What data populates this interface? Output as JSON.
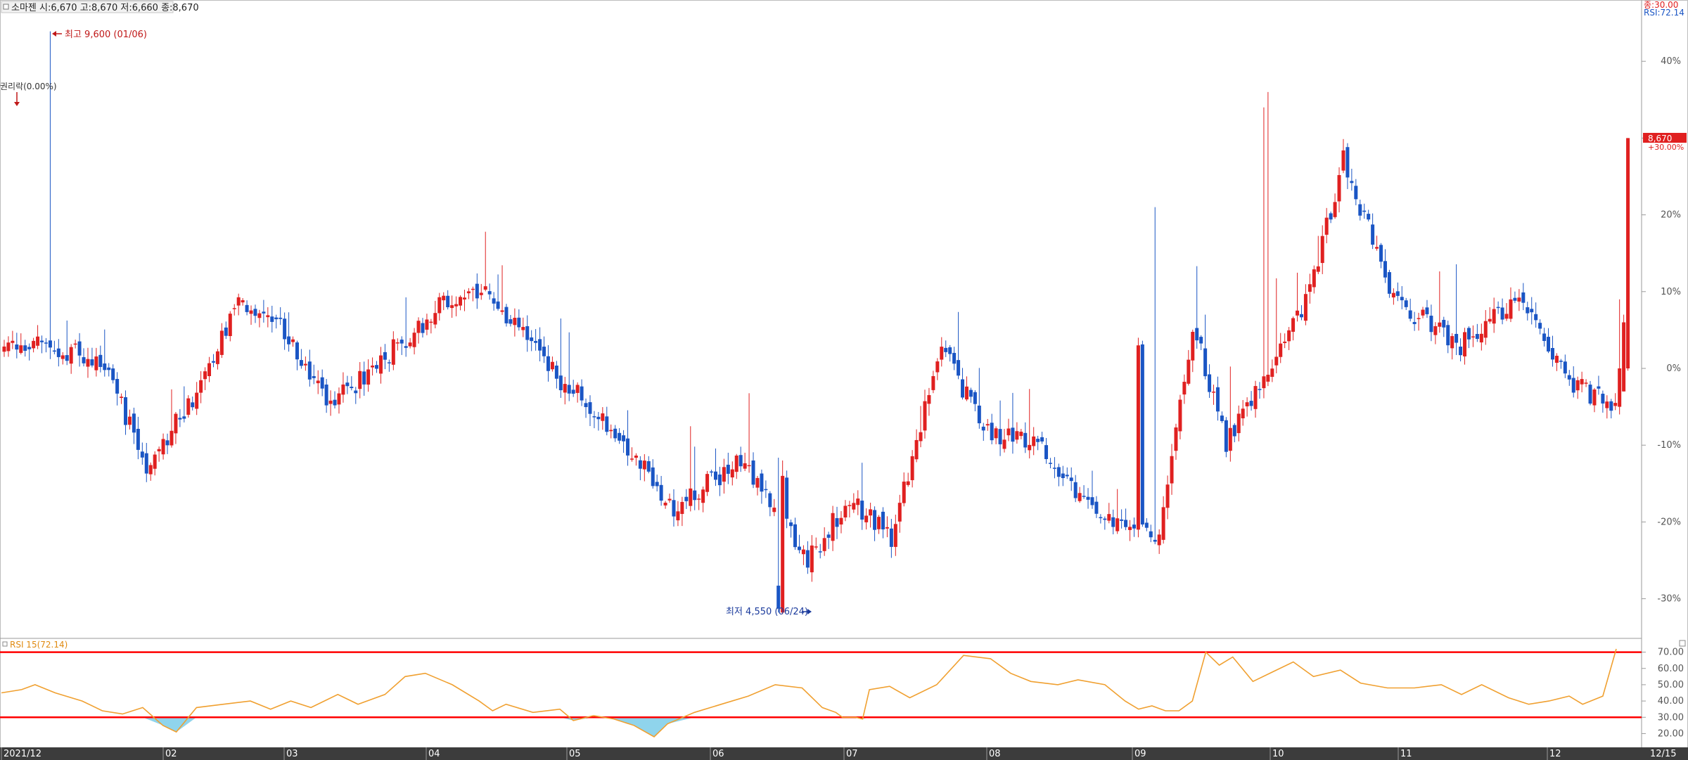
{
  "header": {
    "title": "소마젠",
    "quote": "시:6,670 고:8,670 저:6,660 종:8,670"
  },
  "right_legend": {
    "line1": "종:30.00",
    "line2": "RSI:72.14",
    "colors": {
      "line1": "#e02020",
      "line2": "#1a55c4"
    }
  },
  "price_axis": {
    "ticks": [
      "40%",
      "30%",
      "20%",
      "10%",
      "0%",
      "-10%",
      "-20%",
      "-30%"
    ],
    "last_label": "8,670",
    "last_change": "+30.00%"
  },
  "annotations": {
    "high": "최고 9,600 (01/06)",
    "low": "최저 4,550 (06/24)",
    "ex_rights": "권리락(0.00%)"
  },
  "rsi_panel": {
    "title": "RSI 15(72.14)",
    "ticks": [
      "70.00",
      "60.00",
      "50.00",
      "40.00",
      "30.00",
      "20.00"
    ],
    "overbought": 70,
    "oversold": 30
  },
  "x_axis": {
    "labels": [
      "2021/12",
      "02",
      "03",
      "04",
      "05",
      "06",
      "07",
      "08",
      "09",
      "10",
      "11",
      "12"
    ],
    "end_label": "12/15"
  },
  "colors": {
    "up": "#e02020",
    "down": "#1a55c4",
    "rsi": "#f0a030",
    "band": "#ff0000",
    "oversold_fill": "#8fd4ec",
    "axis_bar": "#3c3c3c"
  },
  "chart_data": {
    "type": "candlestick",
    "base_price": 6670,
    "unit": "% change from base price",
    "price_range_pct": [
      -30,
      40
    ],
    "high": {
      "pct": 43.9,
      "price": 9600,
      "date": "01/06"
    },
    "low": {
      "pct": -31.8,
      "price": 4550,
      "date": "06/24"
    },
    "last": {
      "price": 8670,
      "pct": 30.0
    },
    "segments": [
      {
        "from": 0,
        "to": 8,
        "start": 3,
        "end": 4
      },
      {
        "from": 8,
        "to": 16,
        "start": 4,
        "end": 2
      },
      {
        "from": 16,
        "to": 24,
        "start": 2,
        "end": 1
      },
      {
        "from": 24,
        "to": 34,
        "start": 1,
        "end": -13
      },
      {
        "from": 34,
        "to": 46,
        "start": -13,
        "end": -3
      },
      {
        "from": 46,
        "to": 56,
        "start": -3,
        "end": 9
      },
      {
        "from": 56,
        "to": 66,
        "start": 9,
        "end": 6
      },
      {
        "from": 66,
        "to": 78,
        "start": 6,
        "end": -5
      },
      {
        "from": 78,
        "to": 92,
        "start": -5,
        "end": 2
      },
      {
        "from": 92,
        "to": 104,
        "start": 2,
        "end": 8
      },
      {
        "from": 104,
        "to": 116,
        "start": 8,
        "end": 10
      },
      {
        "from": 116,
        "to": 130,
        "start": 10,
        "end": 0
      },
      {
        "from": 130,
        "to": 146,
        "start": 0,
        "end": -8
      },
      {
        "from": 146,
        "to": 160,
        "start": -8,
        "end": -18
      },
      {
        "from": 160,
        "to": 176,
        "start": -18,
        "end": -12
      },
      {
        "from": 176,
        "to": 192,
        "start": -12,
        "end": -25
      },
      {
        "from": 192,
        "to": 202,
        "start": -25,
        "end": -17
      },
      {
        "from": 202,
        "to": 212,
        "start": -17,
        "end": -22
      },
      {
        "from": 212,
        "to": 224,
        "start": -22,
        "end": 3
      },
      {
        "from": 224,
        "to": 234,
        "start": 3,
        "end": -8
      },
      {
        "from": 234,
        "to": 248,
        "start": -8,
        "end": -10
      },
      {
        "from": 248,
        "to": 262,
        "start": -10,
        "end": -20
      },
      {
        "from": 262,
        "to": 276,
        "start": -20,
        "end": -22
      },
      {
        "from": 276,
        "to": 284,
        "start": -22,
        "end": 6
      },
      {
        "from": 284,
        "to": 292,
        "start": 6,
        "end": -10
      },
      {
        "from": 292,
        "to": 304,
        "start": -10,
        "end": 2
      },
      {
        "from": 304,
        "to": 312,
        "start": 2,
        "end": 10
      },
      {
        "from": 312,
        "to": 320,
        "start": 10,
        "end": 27
      },
      {
        "from": 320,
        "to": 332,
        "start": 27,
        "end": 9
      },
      {
        "from": 332,
        "to": 348,
        "start": 9,
        "end": 3
      },
      {
        "from": 348,
        "to": 362,
        "start": 3,
        "end": 9
      },
      {
        "from": 362,
        "to": 374,
        "start": 9,
        "end": -2
      },
      {
        "from": 374,
        "to": 386,
        "start": -2,
        "end": -5
      }
    ],
    "last_bars": [
      {
        "i": 386,
        "open": -5,
        "close": 0,
        "high": 9,
        "low": -6
      },
      {
        "i": 387,
        "open": -3,
        "close": 6,
        "high": 7,
        "low": -3
      },
      {
        "i": 388,
        "open": 0,
        "close": 30,
        "high": 30,
        "low": -0.3
      }
    ],
    "bar_count": 389,
    "rsi": {
      "name": "RSI 15",
      "last": 72.14,
      "ylim": [
        15,
        75
      ],
      "levels": [
        70,
        30
      ],
      "path": [
        [
          0,
          45
        ],
        [
          6,
          47
        ],
        [
          10,
          50
        ],
        [
          16,
          45
        ],
        [
          24,
          40
        ],
        [
          30,
          34
        ],
        [
          36,
          32
        ],
        [
          42,
          36
        ],
        [
          48,
          25
        ],
        [
          52,
          21
        ],
        [
          58,
          36
        ],
        [
          66,
          38
        ],
        [
          74,
          40
        ],
        [
          80,
          35
        ],
        [
          86,
          40
        ],
        [
          92,
          36
        ],
        [
          100,
          44
        ],
        [
          106,
          38
        ],
        [
          114,
          44
        ],
        [
          120,
          55
        ],
        [
          126,
          57
        ],
        [
          134,
          50
        ],
        [
          142,
          40
        ],
        [
          146,
          34
        ],
        [
          150,
          38
        ],
        [
          158,
          33
        ],
        [
          166,
          35
        ],
        [
          170,
          28
        ],
        [
          176,
          31
        ],
        [
          182,
          29
        ],
        [
          188,
          25
        ],
        [
          194,
          18
        ],
        [
          198,
          26
        ],
        [
          206,
          33
        ],
        [
          214,
          38
        ],
        [
          222,
          43
        ],
        [
          230,
          50
        ],
        [
          238,
          48
        ],
        [
          244,
          36
        ],
        [
          248,
          33
        ],
        [
          250,
          30
        ],
        [
          254,
          30
        ],
        [
          256,
          29
        ],
        [
          258,
          47
        ],
        [
          264,
          49
        ],
        [
          270,
          42
        ],
        [
          278,
          50
        ],
        [
          286,
          68
        ],
        [
          294,
          66
        ],
        [
          300,
          57
        ],
        [
          306,
          52
        ],
        [
          314,
          50
        ],
        [
          320,
          53
        ],
        [
          328,
          50
        ],
        [
          334,
          40
        ],
        [
          338,
          35
        ],
        [
          342,
          37
        ],
        [
          346,
          34
        ],
        [
          350,
          34
        ],
        [
          354,
          40
        ],
        [
          358,
          70
        ],
        [
          362,
          62
        ],
        [
          366,
          67
        ],
        [
          372,
          52
        ],
        [
          378,
          58
        ],
        [
          384,
          64
        ],
        [
          390,
          55
        ],
        [
          398,
          59
        ],
        [
          404,
          51
        ],
        [
          412,
          48
        ],
        [
          420,
          48
        ],
        [
          428,
          50
        ],
        [
          434,
          44
        ],
        [
          440,
          50
        ],
        [
          448,
          42
        ],
        [
          454,
          38
        ],
        [
          460,
          40
        ],
        [
          466,
          43
        ],
        [
          470,
          38
        ],
        [
          476,
          43
        ],
        [
          480,
          72
        ]
      ]
    }
  }
}
